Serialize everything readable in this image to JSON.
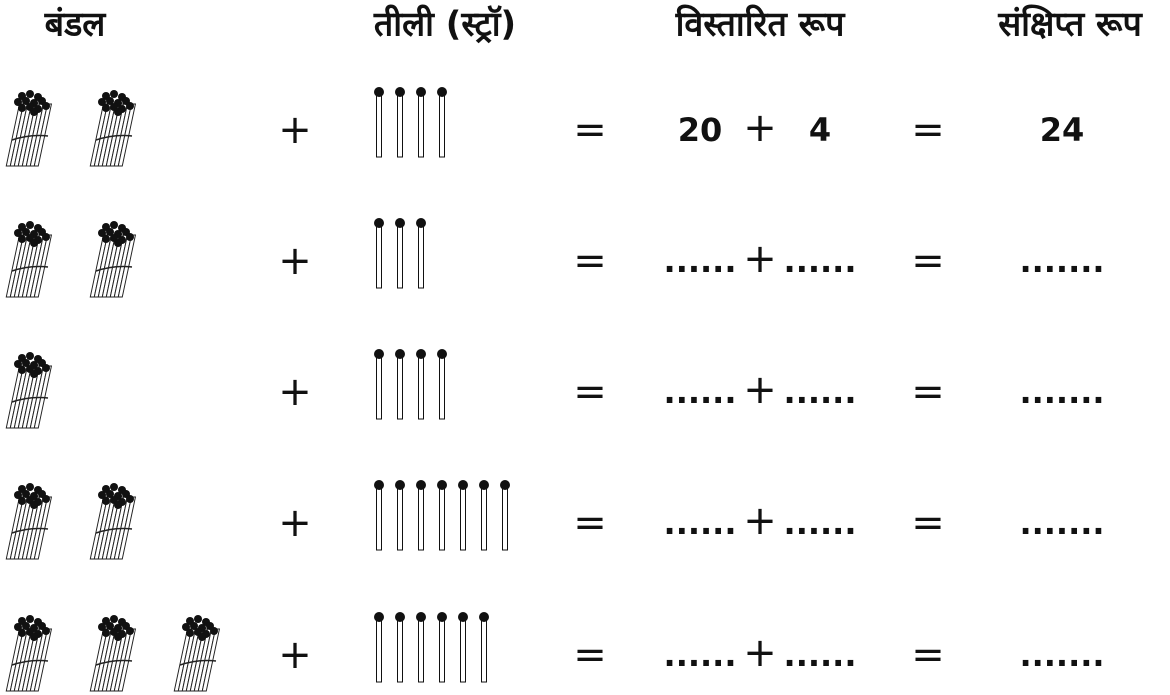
{
  "headers": [
    "बंडल",
    "तीली (स्ट्रॉ)",
    "विस्तारित रूप",
    "संक्षिप्त रूप"
  ],
  "rows": [
    {
      "bundles": 2,
      "sticks": 4,
      "plus": "+",
      "eq1": "=",
      "expanded": [
        "20",
        "+",
        "4"
      ],
      "eq2": "=",
      "short": "24"
    },
    {
      "bundles": 2,
      "sticks": 3,
      "plus": "+",
      "eq1": "=",
      "expanded": [
        "......",
        "+",
        "......"
      ],
      "eq2": "=",
      "short": "......."
    },
    {
      "bundles": 1,
      "sticks": 4,
      "plus": "+",
      "eq1": "=",
      "expanded": [
        "......",
        "+",
        "......"
      ],
      "eq2": "=",
      "short": "......."
    },
    {
      "bundles": 2,
      "sticks": 7,
      "plus": "+",
      "eq1": "=",
      "expanded": [
        "......",
        "+",
        "......"
      ],
      "eq2": "=",
      "short": "......."
    },
    {
      "bundles": 3,
      "sticks": 6,
      "plus": "+",
      "eq1": "=",
      "expanded": [
        "......",
        "+",
        "......"
      ],
      "eq2": "=",
      "short": "......."
    }
  ]
}
